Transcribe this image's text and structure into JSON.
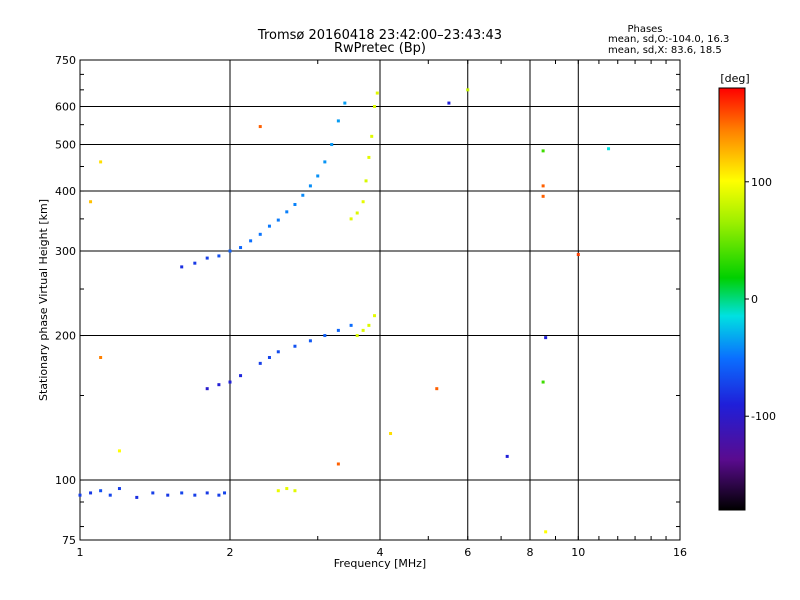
{
  "chart_data": {
    "type": "scatter",
    "title": "Tromsø 20160418 23:42:00–23:43:43",
    "subtitle": "RwPretec (Bp)",
    "xlabel": "Frequency [MHz]",
    "ylabel": "Stationary phase Virtual Height [km]",
    "x_scale": "log2",
    "y_scale": "log",
    "xlim": [
      1,
      16
    ],
    "ylim": [
      75,
      750
    ],
    "x_ticks": [
      1,
      2,
      4,
      6,
      8,
      10,
      16
    ],
    "x_tick_labels": [
      "1",
      "2",
      "4",
      "6",
      "8",
      "10",
      "16"
    ],
    "y_ticks": [
      75,
      100,
      200,
      300,
      400,
      500,
      600,
      750
    ],
    "y_tick_labels": [
      "75",
      "100",
      "200",
      "300",
      "400",
      "500",
      "600",
      "750"
    ],
    "grid": true,
    "phases_box": {
      "heading": "Phases",
      "line_o": "mean, sd,O:-104.0, 16.3",
      "line_x": "mean, sd,X:  83.6, 18.5"
    },
    "colorbar": {
      "label": "[deg]",
      "range": [
        -180,
        180
      ],
      "ticks": [
        100,
        0,
        -100
      ],
      "tick_labels": [
        "100",
        "0",
        "-100"
      ]
    },
    "series": [
      {
        "points": [
          [
            1.0,
            93,
            -110
          ],
          [
            1.05,
            94,
            -112
          ],
          [
            1.1,
            95,
            -105
          ],
          [
            1.15,
            93,
            -108
          ],
          [
            1.2,
            96,
            -110
          ],
          [
            1.3,
            92,
            -115
          ],
          [
            1.4,
            94,
            -110
          ],
          [
            1.5,
            93,
            -112
          ],
          [
            1.6,
            94,
            -108
          ],
          [
            1.7,
            93,
            -110
          ],
          [
            1.8,
            94,
            -112
          ],
          [
            1.9,
            93,
            -110
          ],
          [
            1.95,
            94,
            -108
          ],
          [
            1.6,
            278,
            -115
          ],
          [
            1.7,
            283,
            -112
          ],
          [
            1.8,
            290,
            -110
          ],
          [
            1.9,
            293,
            -105
          ],
          [
            2.0,
            300,
            -100
          ],
          [
            2.1,
            305,
            -98
          ],
          [
            2.2,
            315,
            -95
          ],
          [
            2.3,
            325,
            -92
          ],
          [
            2.4,
            338,
            -90
          ],
          [
            2.5,
            348,
            -88
          ],
          [
            2.6,
            362,
            -86
          ],
          [
            2.7,
            375,
            -84
          ],
          [
            2.8,
            392,
            -80
          ],
          [
            2.9,
            410,
            -78
          ],
          [
            3.0,
            430,
            -76
          ],
          [
            3.1,
            460,
            -74
          ],
          [
            3.2,
            500,
            -72
          ],
          [
            3.3,
            560,
            -70
          ],
          [
            3.4,
            610,
            -68
          ],
          [
            1.8,
            155,
            -125
          ],
          [
            1.9,
            158,
            -122
          ],
          [
            2.0,
            160,
            -120
          ],
          [
            2.1,
            165,
            -118
          ],
          [
            2.3,
            175,
            -110
          ],
          [
            2.4,
            180,
            -108
          ],
          [
            2.5,
            185,
            -106
          ],
          [
            2.7,
            190,
            -104
          ],
          [
            2.9,
            195,
            -102
          ],
          [
            3.1,
            200,
            -100
          ],
          [
            3.3,
            205,
            -98
          ],
          [
            3.5,
            210,
            -96
          ]
        ]
      },
      {
        "points": [
          [
            3.5,
            350,
            85
          ],
          [
            3.6,
            360,
            82
          ],
          [
            3.7,
            380,
            88
          ],
          [
            3.75,
            420,
            80
          ],
          [
            3.8,
            470,
            86
          ],
          [
            3.85,
            520,
            84
          ],
          [
            3.9,
            600,
            83
          ],
          [
            3.95,
            640,
            85
          ],
          [
            3.6,
            200,
            80
          ],
          [
            3.7,
            205,
            84
          ],
          [
            3.8,
            210,
            82
          ],
          [
            3.9,
            220,
            86
          ],
          [
            2.5,
            95,
            90
          ],
          [
            2.6,
            96,
            88
          ],
          [
            2.7,
            95,
            85
          ]
        ]
      },
      {
        "points": [
          [
            1.05,
            380,
            120
          ],
          [
            1.1,
            460,
            110
          ],
          [
            1.1,
            180,
            140
          ],
          [
            1.2,
            115,
            100
          ],
          [
            2.3,
            545,
            150
          ],
          [
            3.3,
            108,
            150
          ],
          [
            4.2,
            125,
            110
          ],
          [
            5.2,
            155,
            150
          ],
          [
            5.5,
            610,
            -120
          ],
          [
            6.0,
            650,
            70
          ],
          [
            7.2,
            112,
            -120
          ],
          [
            8.5,
            485,
            20
          ],
          [
            8.5,
            410,
            150
          ],
          [
            8.5,
            390,
            150
          ],
          [
            8.6,
            198,
            -120
          ],
          [
            8.5,
            160,
            20
          ],
          [
            8.6,
            78,
            100
          ],
          [
            10.0,
            295,
            160
          ],
          [
            11.5,
            490,
            -30
          ]
        ]
      }
    ]
  }
}
